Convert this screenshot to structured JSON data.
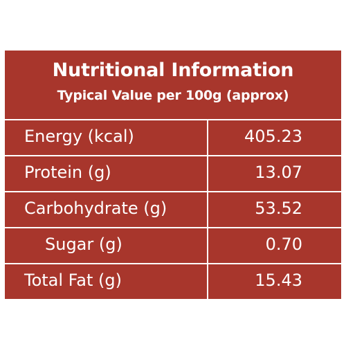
{
  "header": {
    "title": "Nutritional Information",
    "subtitle": "Typical Value per 100g (approx)"
  },
  "rows": [
    {
      "label": "Energy (kcal)",
      "value": "405.23"
    },
    {
      "label": "Protein (g)",
      "value": "13.07"
    },
    {
      "label": "Carbohydrate (g)",
      "value": "53.52"
    },
    {
      "label": "Sugar (g)",
      "value": "0.70"
    },
    {
      "label": "Total Fat (g)",
      "value": "15.43"
    }
  ],
  "colors": {
    "panel_background": "#a8362c",
    "text": "#ffffff",
    "rules": "#ffffff"
  }
}
